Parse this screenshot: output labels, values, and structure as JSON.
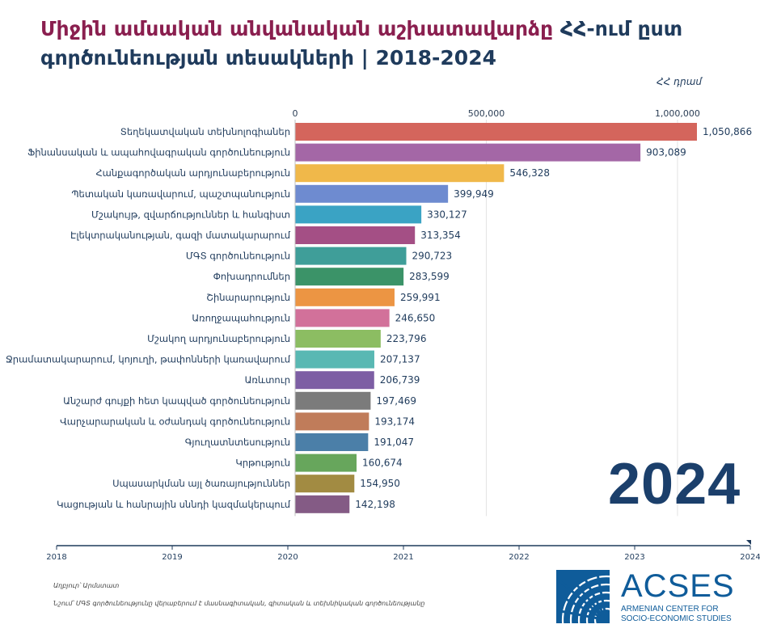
{
  "title": {
    "part1": "Միջին ամսական անվանական աշխատավարձը",
    "part2": " ՀՀ-ում  ըստ գործունեության տեսակների | 2018-2024"
  },
  "unit_label": "ՀՀ դրամ",
  "current_year": "2024",
  "source": "Աղբյուր՝ Արմստատ",
  "note": "Նշում՝ ՄԳՏ գործունեությունը վերաբերում է մասնագիտական, գիտական և տեխնիկական գործունեությանը",
  "logo": {
    "name": "ACSES",
    "line1": "ARMENIAN CENTER FOR",
    "line2": "SOCIO-ECONOMIC STUDIES"
  },
  "timeline": {
    "years": [
      "2018",
      "2019",
      "2020",
      "2021",
      "2022",
      "2023",
      "2024"
    ],
    "current": "2024"
  },
  "chart_data": {
    "type": "bar",
    "orientation": "horizontal",
    "xlim": [
      0,
      1050866
    ],
    "x_ticks": [
      0,
      500000,
      1000000
    ],
    "x_tick_labels": [
      "0",
      "500,000",
      "1,000,000"
    ],
    "grid": true,
    "categories": [
      "Տեղեկատվական տեխնոլոգիաներ",
      "Ֆինանսական և ապահովագրական գործունեություն",
      "Հանքագործական արդյունաբերություն",
      "Պետական կառավարում, պաշտպանություն",
      "Մշակույթ, զվարճություններ և հանգիստ",
      "Էլեկտրականության, գազի մատակարարում",
      "ՄԳՏ գործունեություն",
      "Փոխադրումներ",
      "Շինարարություն",
      "Առողջապահություն",
      "Մշակող արդյունաբերություն",
      "Ջրամատակարարում, կոյուղի, թափոնների կառավարում",
      "Առևտուր",
      "Անշարժ գույքի հետ կապված գործունեություն",
      "Վարչարարական և օժանդակ գործունեություն",
      "Գյուղատնտեսություն",
      "Կրթություն",
      "Սպասարկման այլ ծառայություններ",
      "Կացության և հանրային սննդի կազմակերպում"
    ],
    "values": [
      1050866,
      903089,
      546328,
      399949,
      330127,
      313354,
      290723,
      283599,
      259991,
      246650,
      223796,
      207137,
      206739,
      197469,
      193174,
      191047,
      160674,
      154950,
      142198
    ],
    "value_labels": [
      "1,050,866",
      "903,089",
      "546,328",
      "399,949",
      "330,127",
      "313,354",
      "290,723",
      "283,599",
      "259,991",
      "246,650",
      "223,796",
      "207,137",
      "206,739",
      "197,469",
      "193,174",
      "191,047",
      "160,674",
      "154,950",
      "142,198"
    ],
    "colors": [
      "#d4655c",
      "#a467a6",
      "#f0b84a",
      "#6e8bd0",
      "#3aa3c4",
      "#a44f85",
      "#3f9e99",
      "#3b9368",
      "#ec9543",
      "#d2719a",
      "#8cbd62",
      "#59b8b3",
      "#7d5ea4",
      "#7b7b7b",
      "#c07c5a",
      "#4b7fa8",
      "#67a65c",
      "#a28b42",
      "#845b85"
    ]
  }
}
